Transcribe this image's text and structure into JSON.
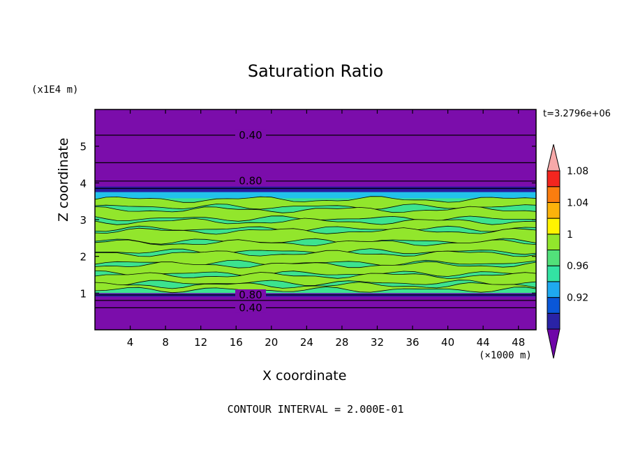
{
  "chart_data": {
    "type": "heatmap",
    "title": "Saturation Ratio",
    "xlabel": "X coordinate",
    "ylabel": "Z coordinate",
    "x_unit": "(×1000 m)",
    "y_unit": "(x1E4 m)",
    "time_label": "t=3.2796e+06",
    "footer": "CONTOUR INTERVAL = 2.000E-01",
    "xlim": [
      0,
      50
    ],
    "ylim": [
      0,
      6
    ],
    "x_ticks": [
      "4",
      "8",
      "12",
      "16",
      "20",
      "24",
      "28",
      "32",
      "36",
      "40",
      "44",
      "48"
    ],
    "y_ticks": [
      "1",
      "2",
      "3",
      "4",
      "5"
    ],
    "contour_labels": [
      "0.40",
      "0.80",
      "0.80",
      "0.40"
    ],
    "colorbar": {
      "labels": [
        "1.08",
        "1.04",
        "1",
        "0.96",
        "0.92"
      ],
      "colors": [
        "#6f05a8",
        "#2a23a6",
        "#0a57d8",
        "#1fa9f0",
        "#33e2a3",
        "#52e07a",
        "#92e62c",
        "#fff400",
        "#fcb30b",
        "#fb7d0f",
        "#f3261f",
        "#f7a9a9"
      ]
    },
    "layers": [
      {
        "range": "z 4.05–6.0",
        "value_class": "<0.92",
        "color": "#7b0dab"
      },
      {
        "range": "z 3.85–4.05",
        "value_class": "0.92",
        "color": "#2619a0"
      },
      {
        "range": "z 3.6–3.85",
        "value_class": "0.96",
        "color": "#22c2ea"
      },
      {
        "range": "z 1.0–3.6",
        "value_class": "1.00 with 1.00–1.02 patches",
        "color": "#3ce38f"
      },
      {
        "range": "z 0.0–1.0",
        "value_class": "<0.92",
        "color": "#7b0dab"
      }
    ]
  }
}
